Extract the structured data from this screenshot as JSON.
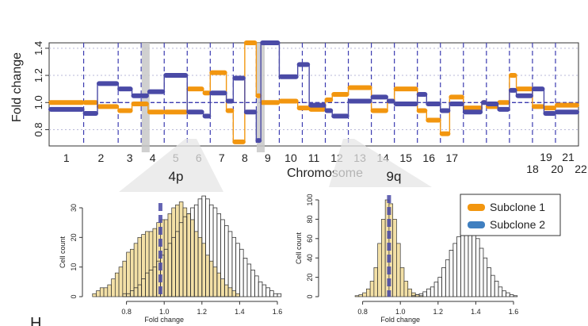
{
  "colors": {
    "subclone1": "#f2960f",
    "subclone2": "#4a4aa6",
    "hist_fill": "#f3e0a6",
    "grid": "#b8b8d8",
    "chrom_line": "#3b3bb0",
    "highlight": "#c8c8c8"
  },
  "chart_data": [
    {
      "type": "line",
      "title": "",
      "xlabel": "Chromosome",
      "ylabel": "Fold change",
      "ylim": [
        0.68,
        1.44
      ],
      "y_ticks": [
        "0.8",
        "1.0",
        "1.2",
        "1.4"
      ],
      "y_tick_values": [
        0.8,
        1.0,
        1.2,
        1.4
      ],
      "baseline": 1.0,
      "chromosome_labels": [
        "1",
        "2",
        "3",
        "4",
        "5",
        "6",
        "7",
        "8",
        "9",
        "10",
        "11",
        "12",
        "13",
        "14",
        "15",
        "16",
        "17",
        "18",
        "19",
        "20",
        "21",
        "22"
      ],
      "chromosome_bounds": [
        0,
        1.5,
        3,
        4,
        5,
        6,
        7,
        8,
        9,
        10,
        11,
        12,
        13,
        14,
        15,
        16,
        17,
        18,
        19,
        20,
        21,
        22,
        23
      ],
      "highlights": [
        {
          "label": "4p",
          "x": [
            4.02,
            4.16
          ]
        },
        {
          "label": "9q",
          "x": [
            9.02,
            9.16
          ]
        }
      ],
      "series": [
        {
          "name": "Subclone 1",
          "segments": [
            [
              0,
              1.5,
              1.0
            ],
            [
              1.5,
              2.1,
              1.0
            ],
            [
              2.1,
              3,
              0.97
            ],
            [
              3,
              3.6,
              0.94
            ],
            [
              3.6,
              4.3,
              0.99
            ],
            [
              4.3,
              5,
              0.93
            ],
            [
              5,
              6,
              0.93
            ],
            [
              6,
              6.7,
              1.1
            ],
            [
              6.7,
              7,
              1.07
            ],
            [
              7,
              7.7,
              1.22
            ],
            [
              7.7,
              8,
              0.94
            ],
            [
              8,
              8.5,
              0.71
            ],
            [
              8.5,
              9,
              1.44
            ],
            [
              9,
              9.2,
              1.05
            ],
            [
              9.2,
              10,
              1.0
            ],
            [
              10,
              10.8,
              1.01
            ],
            [
              10.8,
              11.3,
              0.96
            ],
            [
              11.3,
              12,
              0.95
            ],
            [
              12,
              12.3,
              1.02
            ],
            [
              12.3,
              13,
              1.06
            ],
            [
              13,
              14,
              1.11
            ],
            [
              14,
              14.7,
              0.94
            ],
            [
              14.7,
              15,
              1.01
            ],
            [
              15,
              16,
              1.1
            ],
            [
              16,
              16.4,
              0.94
            ],
            [
              16.4,
              17,
              0.87
            ],
            [
              17,
              17.4,
              0.77
            ],
            [
              17.4,
              18,
              1.04
            ],
            [
              18,
              18.8,
              0.96
            ],
            [
              18.8,
              19,
              1.0
            ],
            [
              19,
              19.5,
              0.97
            ],
            [
              19.5,
              20,
              1.0
            ],
            [
              20,
              20.3,
              1.2
            ],
            [
              20.3,
              21,
              1.1
            ],
            [
              21,
              21.5,
              0.97
            ],
            [
              21.5,
              22,
              0.96
            ],
            [
              22,
              23,
              0.98
            ]
          ]
        },
        {
          "name": "Subclone 2",
          "segments": [
            [
              0,
              1.5,
              0.95
            ],
            [
              1.5,
              2.1,
              0.92
            ],
            [
              2.1,
              3,
              1.14
            ],
            [
              3,
              3.6,
              1.1
            ],
            [
              3.6,
              4.3,
              1.05
            ],
            [
              4.3,
              5,
              1.08
            ],
            [
              5,
              6,
              1.2
            ],
            [
              6,
              6.7,
              0.93
            ],
            [
              6.7,
              7,
              0.9
            ],
            [
              7,
              7.7,
              1.07
            ],
            [
              7.7,
              8,
              1.01
            ],
            [
              8,
              8.5,
              1.18
            ],
            [
              8.5,
              9,
              0.93
            ],
            [
              9,
              9.2,
              0.72
            ],
            [
              9.2,
              10,
              1.44
            ],
            [
              10,
              10.8,
              1.19
            ],
            [
              10.8,
              11.3,
              1.28
            ],
            [
              11.3,
              12,
              0.98
            ],
            [
              12,
              12.3,
              0.94
            ],
            [
              12.3,
              13,
              0.9
            ],
            [
              13,
              14,
              1.01
            ],
            [
              14,
              14.7,
              1.04
            ],
            [
              14.7,
              15,
              1.01
            ],
            [
              15,
              16,
              0.99
            ],
            [
              16,
              16.4,
              1.06
            ],
            [
              16.4,
              17,
              0.99
            ],
            [
              17,
              17.4,
              0.94
            ],
            [
              17.4,
              18,
              0.99
            ],
            [
              18,
              18.8,
              0.93
            ],
            [
              18.8,
              19,
              1.0
            ],
            [
              19,
              19.5,
              0.99
            ],
            [
              19.5,
              20,
              0.95
            ],
            [
              20,
              20.3,
              1.09
            ],
            [
              20.3,
              21,
              1.05
            ],
            [
              21,
              21.5,
              1.1
            ],
            [
              21.5,
              22,
              0.92
            ],
            [
              22,
              23,
              0.93
            ]
          ]
        }
      ]
    },
    {
      "type": "bar",
      "title": "4p",
      "xlabel": "Fold change",
      "ylabel": "Cell count",
      "xlim": [
        0.6,
        1.6
      ],
      "ylim": [
        0,
        30
      ],
      "x_ticks": [
        "0.8",
        "1.0",
        "1.2",
        "1.4",
        "1.6"
      ],
      "y_ticks": [
        "0",
        "10",
        "20",
        "30"
      ],
      "bin_start": 0.62,
      "bin_width": 0.02,
      "subclone1_counts": [
        1,
        2,
        3,
        3,
        4,
        6,
        8,
        10,
        12,
        15,
        16,
        18,
        20,
        21,
        22,
        22,
        23,
        25,
        26,
        26,
        28,
        30,
        31,
        32,
        30,
        28,
        26,
        22,
        20,
        18,
        14,
        12,
        10,
        8,
        6,
        4,
        3,
        2,
        1
      ],
      "subclone2_counts": [
        0,
        0,
        0,
        1,
        1,
        2,
        3,
        4,
        6,
        8,
        9,
        10,
        12,
        14,
        16,
        18,
        20,
        22,
        25,
        27,
        28,
        30,
        31,
        33,
        34,
        33,
        31,
        30,
        28,
        26,
        24,
        22,
        20,
        18,
        16,
        13,
        11,
        9,
        7,
        5,
        4,
        3,
        2,
        1,
        1
      ],
      "marker_value": 0.98
    },
    {
      "type": "bar",
      "title": "9q",
      "xlabel": "Fold change",
      "ylabel": "Cell count",
      "xlim": [
        0.6,
        1.6
      ],
      "ylim": [
        0,
        100
      ],
      "x_ticks": [
        "0.8",
        "1.0",
        "1.2",
        "1.4",
        "1.6"
      ],
      "y_ticks": [
        "0",
        "20",
        "40",
        "60",
        "80",
        "100"
      ],
      "bin_start": 0.76,
      "bin_width": 0.02,
      "subclone1_counts": [
        1,
        2,
        4,
        8,
        16,
        30,
        55,
        80,
        100,
        96,
        80,
        55,
        30,
        16,
        8,
        4,
        2,
        1
      ],
      "subclone2_counts": [
        0,
        0,
        0,
        1,
        2,
        3,
        5,
        8,
        10,
        15,
        20,
        30,
        38,
        48,
        55,
        62,
        70,
        78,
        76,
        68,
        60,
        50,
        40,
        30,
        22,
        16,
        10,
        6,
        4,
        2,
        1
      ],
      "subclone2_bin_start": 1.0,
      "marker_value": 0.94
    }
  ],
  "legend": {
    "items": [
      "Subclone 1",
      "Subclone 2"
    ]
  },
  "panel_letter": "H"
}
